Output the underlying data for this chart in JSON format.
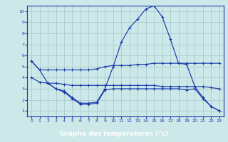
{
  "title": "Graphe des températures (°c)",
  "bg_color": "#cce8e8",
  "grid_color": "#aacccc",
  "line_color": "#1a3aaa",
  "label_bg": "#2244bb",
  "xlim": [
    -0.5,
    23.5
  ],
  "ylim": [
    0.5,
    10.5
  ],
  "xticks": [
    0,
    1,
    2,
    3,
    4,
    5,
    6,
    7,
    8,
    9,
    10,
    11,
    12,
    13,
    14,
    15,
    16,
    17,
    18,
    19,
    20,
    21,
    22,
    23
  ],
  "yticks": [
    1,
    2,
    3,
    4,
    5,
    6,
    7,
    8,
    9,
    10
  ],
  "curve_max_x": [
    0,
    1,
    2,
    3,
    4,
    5,
    6,
    7,
    8,
    9,
    10,
    11,
    12,
    13,
    14,
    15,
    16,
    17,
    18,
    19,
    20,
    21,
    22,
    23
  ],
  "curve_max_y": [
    5.5,
    4.7,
    4.7,
    4.7,
    4.7,
    4.7,
    4.7,
    4.7,
    4.8,
    5.0,
    5.1,
    5.1,
    5.1,
    5.2,
    5.2,
    5.3,
    5.3,
    5.3,
    5.3,
    5.3,
    5.3,
    5.3,
    5.3,
    5.3
  ],
  "curve_avg_x": [
    0,
    1,
    2,
    3,
    4,
    5,
    6,
    7,
    8,
    9,
    10,
    11,
    12,
    13,
    14,
    15,
    16,
    17,
    18,
    19,
    20,
    21,
    22,
    23
  ],
  "curve_avg_y": [
    4.0,
    3.6,
    3.5,
    3.5,
    3.4,
    3.3,
    3.3,
    3.3,
    3.3,
    3.3,
    3.3,
    3.3,
    3.3,
    3.3,
    3.3,
    3.3,
    3.2,
    3.2,
    3.2,
    3.2,
    3.2,
    3.2,
    3.1,
    3.0
  ],
  "curve_temp_x": [
    0,
    1,
    2,
    3,
    4,
    5,
    6,
    7,
    8,
    9,
    10,
    11,
    12,
    13,
    14,
    15,
    16,
    17,
    18,
    19,
    20,
    21,
    22,
    23
  ],
  "curve_temp_y": [
    5.5,
    4.7,
    3.5,
    3.0,
    2.8,
    2.2,
    1.7,
    1.7,
    1.8,
    3.0,
    5.0,
    7.2,
    8.5,
    9.3,
    10.2,
    10.5,
    9.5,
    7.5,
    5.3,
    5.2,
    3.2,
    2.2,
    1.4,
    1.0
  ],
  "curve_min_x": [
    2,
    3,
    4,
    5,
    6,
    7,
    8,
    9,
    10,
    11,
    12,
    13,
    14,
    15,
    16,
    17,
    18,
    19,
    20,
    21,
    22,
    23
  ],
  "curve_min_y": [
    3.5,
    3.0,
    2.7,
    2.1,
    1.6,
    1.6,
    1.7,
    2.9,
    3.0,
    3.0,
    3.0,
    3.0,
    3.0,
    3.0,
    3.0,
    3.0,
    3.0,
    2.9,
    3.0,
    2.1,
    1.4,
    1.0
  ]
}
